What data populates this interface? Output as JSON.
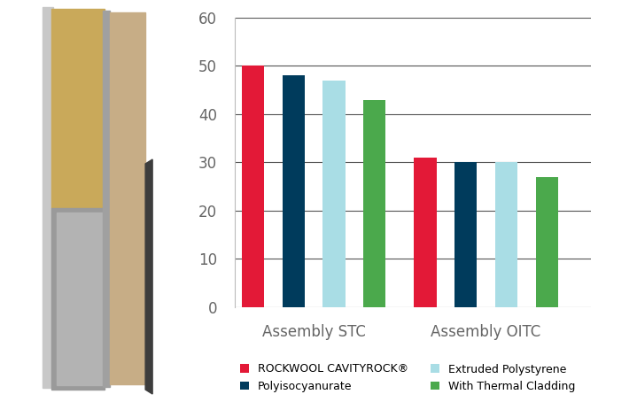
{
  "chart_data": {
    "type": "bar",
    "categories": [
      "Assembly STC",
      "Assembly OITC"
    ],
    "series": [
      {
        "name": "ROCKWOOL CAVITYROCK®",
        "color": "#e31937",
        "values": [
          50,
          31
        ]
      },
      {
        "name": "Polyisocyanurate",
        "color": "#003b5c",
        "values": [
          48,
          30
        ]
      },
      {
        "name": "Extruded Polystyrene",
        "color": "#a9dde5",
        "values": [
          47,
          30
        ]
      },
      {
        "name": "With Thermal Cladding",
        "color": "#4ba94c",
        "values": [
          43,
          27
        ]
      }
    ],
    "ylim": [
      0,
      60
    ],
    "yticks": [
      0,
      10,
      20,
      30,
      40,
      50,
      60
    ],
    "grid": true,
    "legend": "lower center"
  }
}
